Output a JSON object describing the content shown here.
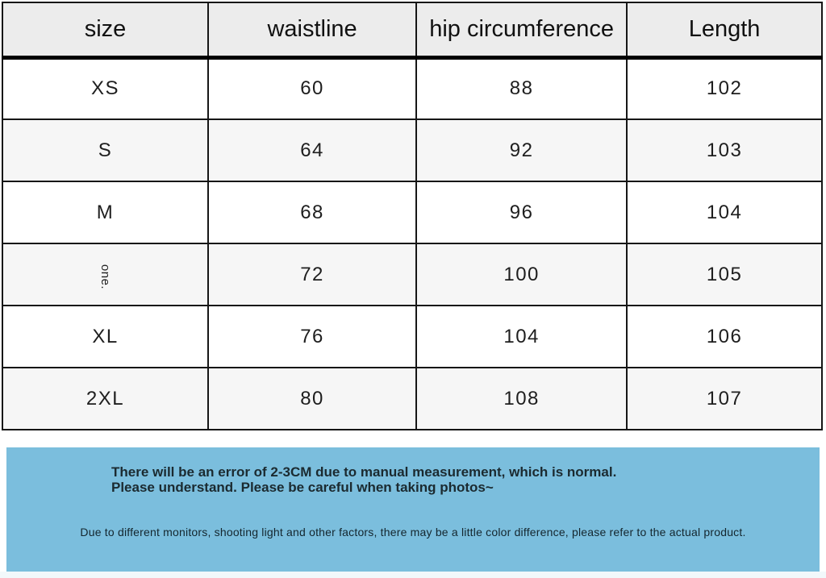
{
  "table": {
    "headers": [
      "size",
      "waistline",
      "hip circumference",
      "Length"
    ],
    "rows": [
      {
        "size": "XS",
        "waistline": "60",
        "hip": "88",
        "length": "102"
      },
      {
        "size": "S",
        "waistline": "64",
        "hip": "92",
        "length": "103"
      },
      {
        "size": "M",
        "waistline": "68",
        "hip": "96",
        "length": "104"
      },
      {
        "size": "one.",
        "waistline": "72",
        "hip": "100",
        "length": "105"
      },
      {
        "size": "XL",
        "waistline": "76",
        "hip": "104",
        "length": "106"
      },
      {
        "size": "2XL",
        "waistline": "80",
        "hip": "108",
        "length": "107"
      }
    ]
  },
  "chart_data": {
    "type": "table",
    "title": "",
    "columns": [
      "size",
      "waistline",
      "hip circumference",
      "Length"
    ],
    "rows": [
      [
        "XS",
        60,
        88,
        102
      ],
      [
        "S",
        64,
        92,
        103
      ],
      [
        "M",
        68,
        96,
        104
      ],
      [
        "one",
        72,
        100,
        105
      ],
      [
        "XL",
        76,
        104,
        106
      ],
      [
        "2XL",
        80,
        108,
        107
      ]
    ],
    "layout_hints": {
      "header_background": "#ececec",
      "alternating_row_background": "#f6f6f6",
      "border_color": "#161616",
      "row_3_label_rotated_90deg": true
    }
  },
  "notes": {
    "measurement": "There will be an error of 2-3CM due to manual measurement, which is normal. Please understand. Please be careful when taking photos~",
    "color_difference": "Due to different monitors, shooting light and other factors, there may be a little color difference, please refer to the actual product."
  },
  "colors": {
    "notice_background": "#7bbedd",
    "header_background": "#ececec",
    "row_alternate": "#f6f6f6",
    "border": "#161616"
  }
}
